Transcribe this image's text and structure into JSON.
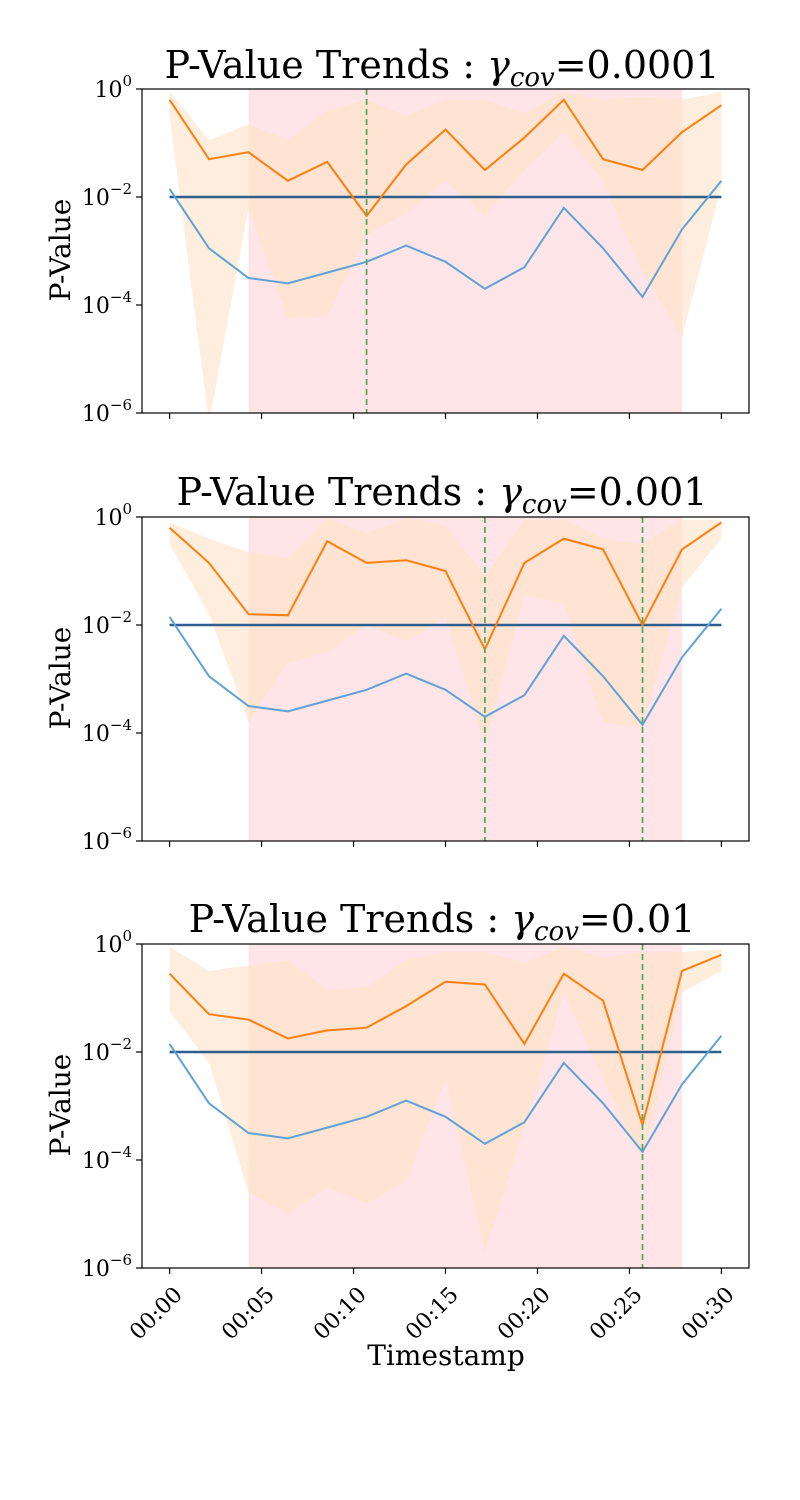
{
  "figure": {
    "xlabel": "Timestamp",
    "ylabel": "P-Value",
    "title_prefix": "P-Value Trends : ",
    "gamma_symbol": "γ",
    "gamma_subscript": "cov",
    "x_tick_labels": [
      "00:00",
      "00:05",
      "00:10",
      "00:15",
      "00:20",
      "00:25",
      "00:30"
    ],
    "x_tick_minutes": [
      0,
      5,
      10,
      15,
      20,
      25,
      30
    ],
    "y_tick_base": "10",
    "y_tick_exponents": [
      "0",
      "−2",
      "−4",
      "−6"
    ],
    "y_tick_log_values": [
      0,
      -2,
      -4,
      -6
    ]
  },
  "colors": {
    "orange": "#ff7f0e",
    "blue": "#5fa2d6",
    "threshold": "#2d5f8f",
    "vline": "#55a868",
    "shade": "#ffcfd4",
    "band": "#ffe1c6"
  },
  "chart_data": [
    {
      "type": "line",
      "title_value": "=0.0001",
      "x_minutes": [
        0,
        2.14,
        4.29,
        6.43,
        8.57,
        10.71,
        12.86,
        15,
        17.14,
        19.29,
        21.43,
        23.57,
        25.71,
        27.86,
        30
      ],
      "ylim_log10": [
        -6,
        0
      ],
      "xlim_minutes": [
        -1.5,
        31.5
      ],
      "threshold": 0.01,
      "shaded_region": [
        4.29,
        27.86
      ],
      "vlines": [
        10.71
      ],
      "series": [
        {
          "name": "orange",
          "log10": [
            -0.2,
            -1.3,
            -1.17,
            -1.7,
            -1.35,
            -2.35,
            -1.4,
            -0.75,
            -1.5,
            -0.9,
            -0.2,
            -1.3,
            -1.5,
            -0.8,
            -0.3
          ]
        },
        {
          "name": "blue",
          "log10": [
            -1.85,
            -2.95,
            -3.5,
            -3.6,
            -3.4,
            -3.2,
            -2.9,
            -3.2,
            -3.7,
            -3.3,
            -2.2,
            -2.95,
            -3.85,
            -2.6,
            -1.7
          ]
        }
      ],
      "band": {
        "upper_log10": [
          -0.05,
          -0.95,
          -0.65,
          -0.95,
          -0.4,
          -0.2,
          -0.5,
          -0.2,
          -0.2,
          -0.45,
          -0.05,
          -0.2,
          -0.15,
          -0.2,
          -0.05
        ],
        "lower_log10": [
          -0.5,
          -6.2,
          -2.2,
          -4.25,
          -4.2,
          -2.7,
          -2.3,
          -1.7,
          -2.35,
          -1.5,
          -0.8,
          -1.7,
          -3.4,
          -4.6,
          -1.8
        ]
      }
    },
    {
      "type": "line",
      "title_value": "=0.001",
      "x_minutes": [
        0,
        2.14,
        4.29,
        6.43,
        8.57,
        10.71,
        12.86,
        15,
        17.14,
        19.29,
        21.43,
        23.57,
        25.71,
        27.86,
        30
      ],
      "ylim_log10": [
        -6,
        0
      ],
      "xlim_minutes": [
        -1.5,
        31.5
      ],
      "threshold": 0.01,
      "shaded_region": [
        4.29,
        27.86
      ],
      "vlines": [
        17.14,
        25.71
      ],
      "series": [
        {
          "name": "orange",
          "log10": [
            -0.2,
            -0.85,
            -1.8,
            -1.82,
            -0.45,
            -0.85,
            -0.8,
            -1.0,
            -2.45,
            -0.85,
            -0.4,
            -0.6,
            -2.0,
            -0.6,
            -0.1
          ]
        },
        {
          "name": "blue",
          "log10": [
            -1.85,
            -2.95,
            -3.5,
            -3.6,
            -3.4,
            -3.2,
            -2.9,
            -3.2,
            -3.7,
            -3.3,
            -2.2,
            -2.95,
            -3.85,
            -2.6,
            -1.7
          ]
        }
      ],
      "band": {
        "upper_log10": [
          -0.1,
          -0.4,
          -0.65,
          -0.75,
          -0.02,
          -0.3,
          -0.02,
          -0.15,
          -1.1,
          -0.05,
          -0.05,
          -0.4,
          -0.5,
          -0.05,
          -0.05
        ],
        "lower_log10": [
          -0.5,
          -1.8,
          -3.8,
          -2.7,
          -2.5,
          -2.0,
          -2.3,
          -1.85,
          -4.2,
          -1.45,
          -1.6,
          -3.8,
          -3.9,
          -1.3,
          -0.4
        ]
      }
    },
    {
      "type": "line",
      "title_value": "=0.01",
      "x_minutes": [
        0,
        2.14,
        4.29,
        6.43,
        8.57,
        10.71,
        12.86,
        15,
        17.14,
        19.29,
        21.43,
        23.57,
        25.71,
        27.86,
        30
      ],
      "ylim_log10": [
        -6,
        0
      ],
      "xlim_minutes": [
        -1.5,
        31.5
      ],
      "threshold": 0.01,
      "shaded_region": [
        4.29,
        27.86
      ],
      "vlines": [
        25.71
      ],
      "series": [
        {
          "name": "orange",
          "log10": [
            -0.55,
            -1.3,
            -1.4,
            -1.75,
            -1.6,
            -1.55,
            -1.15,
            -0.7,
            -0.75,
            -1.85,
            -0.55,
            -1.05,
            -3.35,
            -0.5,
            -0.2
          ]
        },
        {
          "name": "blue",
          "log10": [
            -1.85,
            -2.95,
            -3.5,
            -3.6,
            -3.4,
            -3.2,
            -2.9,
            -3.2,
            -3.7,
            -3.3,
            -2.2,
            -2.95,
            -3.85,
            -2.6,
            -1.7
          ]
        }
      ],
      "band": {
        "upper_log10": [
          -0.05,
          -0.5,
          -0.4,
          -0.3,
          -0.85,
          -0.8,
          -0.3,
          -0.15,
          -0.15,
          -0.35,
          -0.05,
          -0.25,
          -0.15,
          -0.15,
          -0.1
        ],
        "lower_log10": [
          -1.25,
          -2.2,
          -4.6,
          -5.0,
          -4.5,
          -4.8,
          -4.4,
          -2.5,
          -5.7,
          -3.4,
          -0.9,
          -2.5,
          -4.0,
          -0.9,
          -0.5
        ]
      }
    }
  ]
}
